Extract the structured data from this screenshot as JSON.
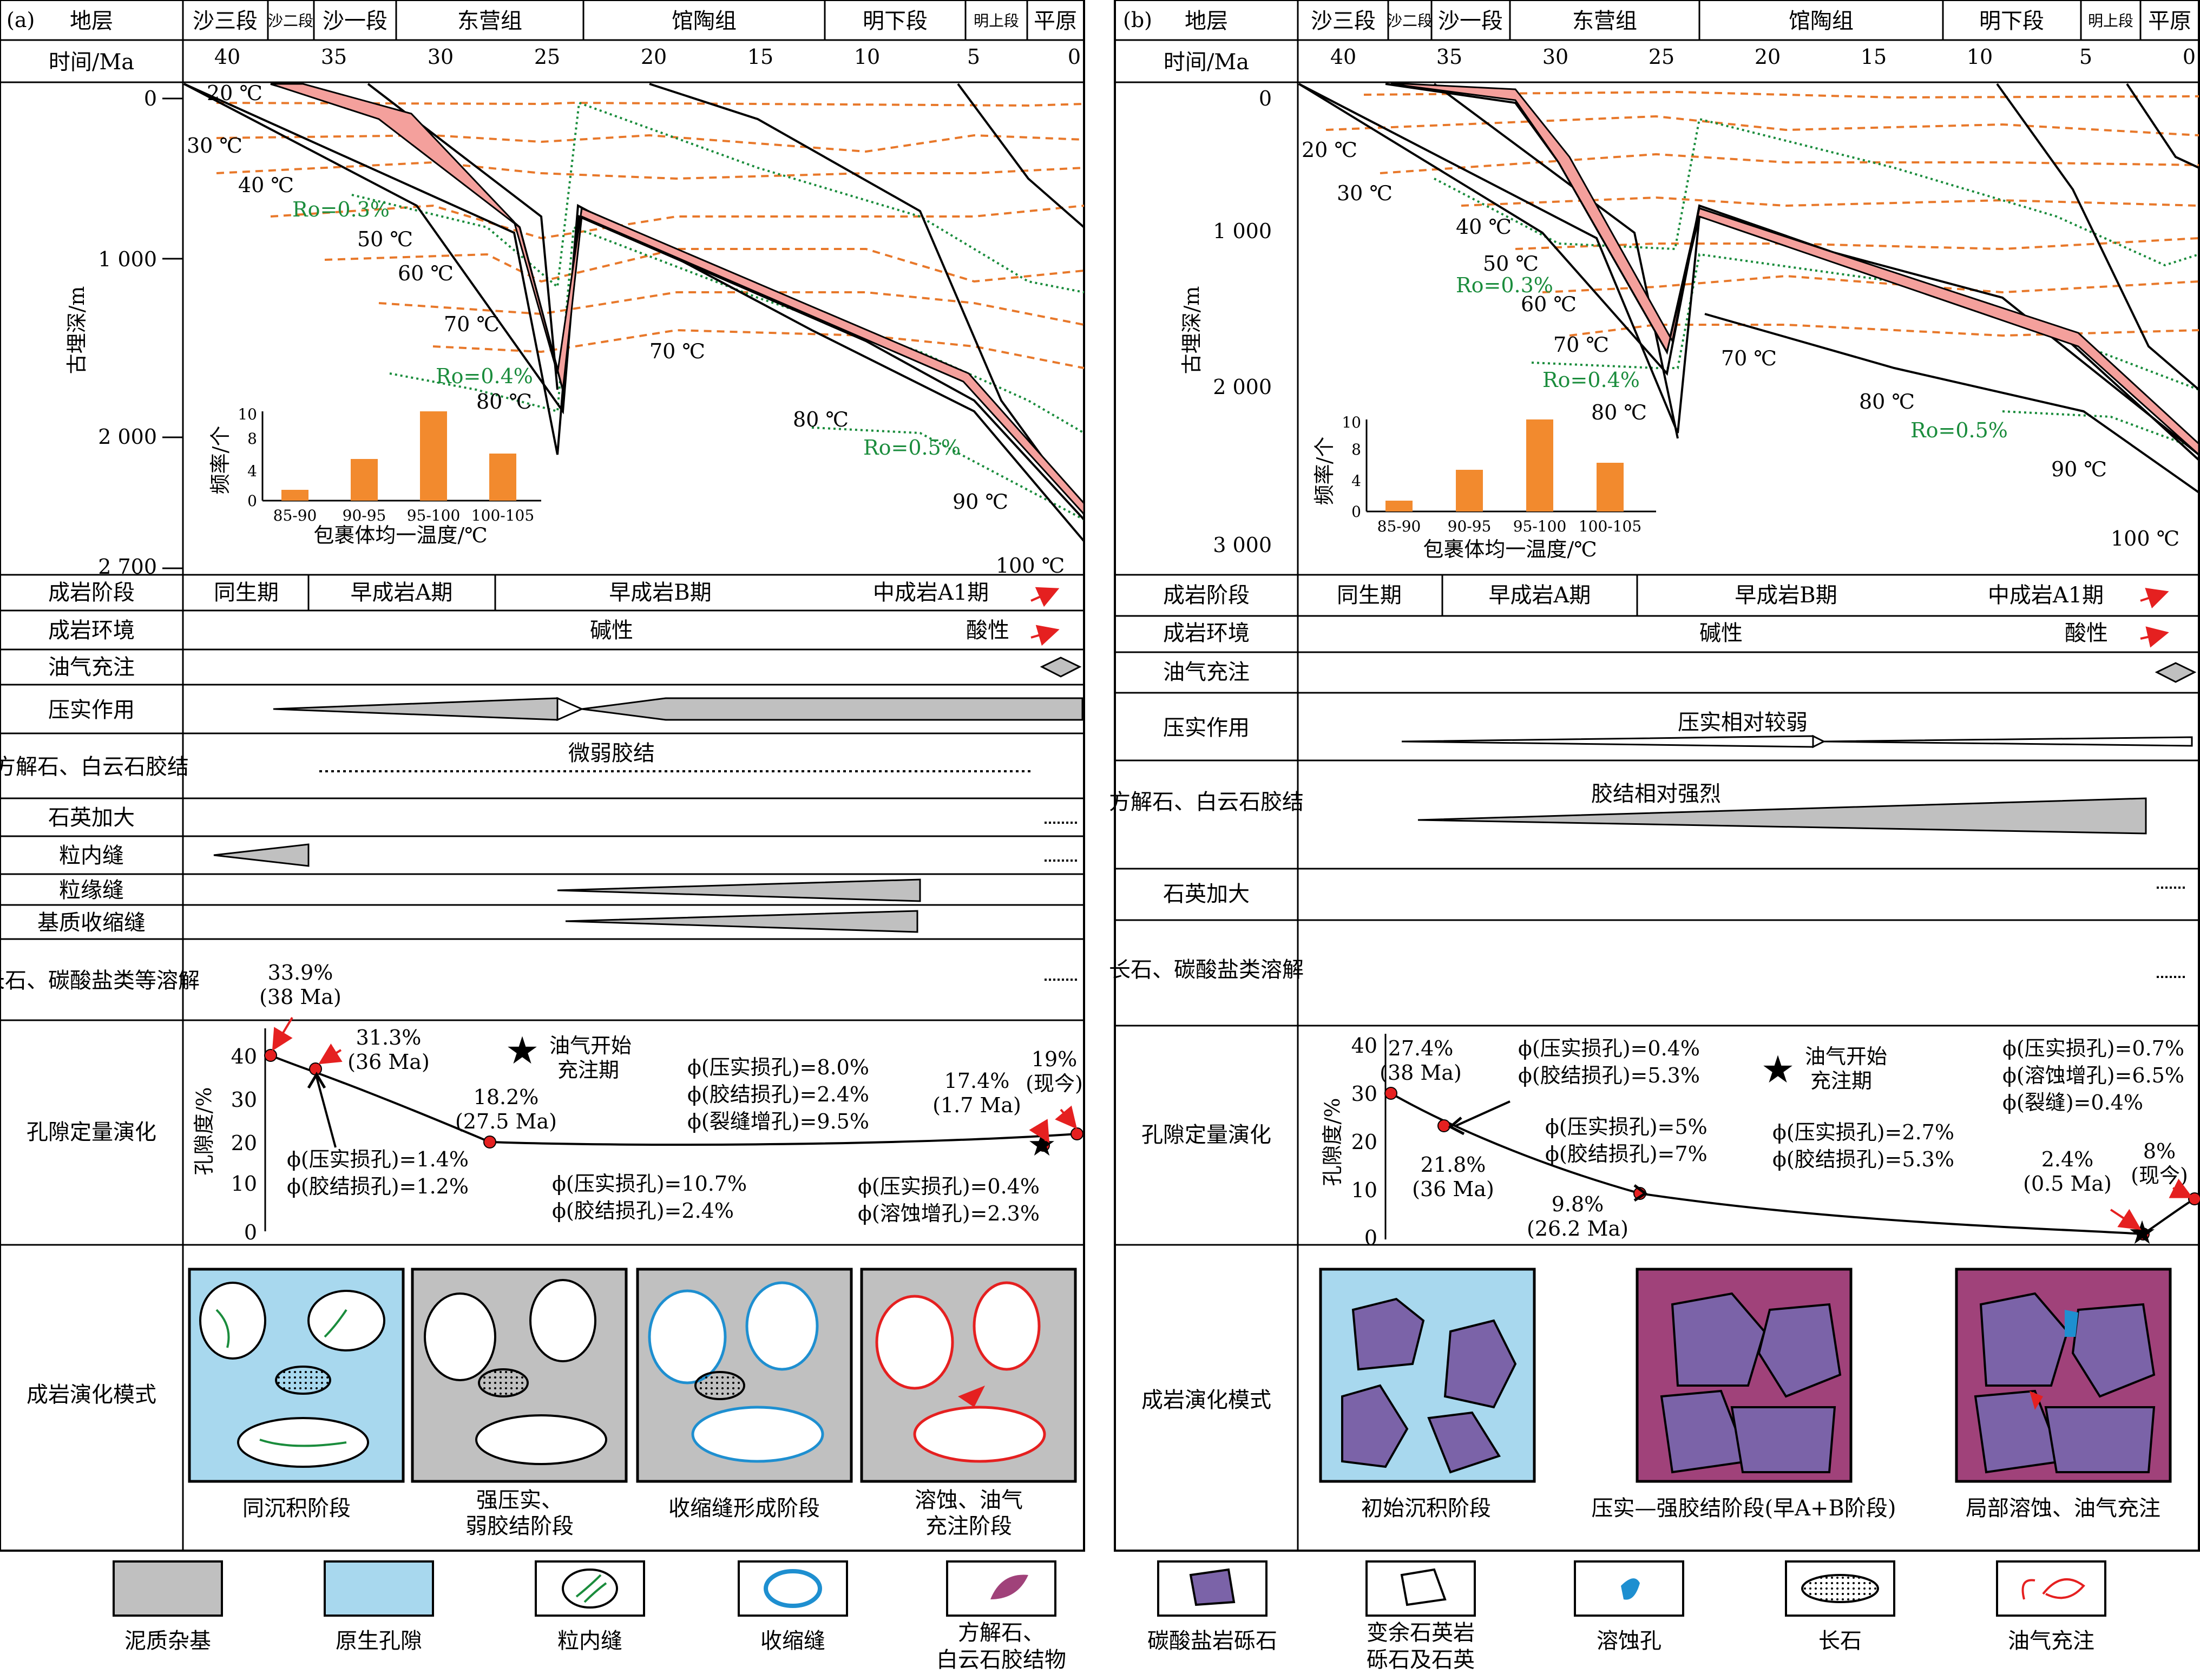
{
  "panel_a": {
    "tag": "(a)",
    "strata_header": "地层",
    "strata": [
      "沙三段",
      "沙二段",
      "沙一段",
      "东营组",
      "馆陶组",
      "明下段",
      "明上段",
      "平原"
    ],
    "time_header": "时间/Ma",
    "time_ticks": [
      "40",
      "35",
      "30",
      "25",
      "20",
      "15",
      "10",
      "5",
      "0"
    ],
    "depth_axis_label": "古埋深/m",
    "depth_ticks": [
      "0",
      "1 000",
      "2 000",
      "2 700"
    ],
    "isotherm_labels": [
      "20 ℃",
      "30 ℃",
      "40 ℃",
      "50 ℃",
      "60 ℃",
      "70 ℃",
      "80 ℃",
      "70 ℃",
      "80 ℃",
      "90 ℃",
      "100 ℃"
    ],
    "ro_labels": [
      "Ro=0.3%",
      "Ro=0.4%",
      "Ro=0.5%"
    ],
    "hist": {
      "ylabel": "频率/个",
      "xlabel": "包裹体均一温度/℃",
      "yticks": [
        "0",
        "4",
        "8",
        "10"
      ],
      "categories": [
        "85-90",
        "90-95",
        "95-100",
        "100-105"
      ],
      "values": [
        1,
        5,
        10,
        5.2
      ]
    },
    "stage_header": "成岩阶段",
    "stages": [
      "同生期",
      "早成岩A期",
      "早成岩B期",
      "中成岩A1期"
    ],
    "env_header": "成岩环境",
    "env": [
      "碱性",
      "酸性"
    ],
    "rows": [
      "油气充注",
      "压实作用",
      "方解石、白云石胶结",
      "石英加大",
      "粒内缝",
      "粒缘缝",
      "基质收缩缝",
      "长石、碳酸盐类等溶解",
      "孔隙定量演化",
      "成岩演化模式"
    ],
    "cement_note": "微弱胶结",
    "porosity": {
      "ylabel": "孔隙度/%",
      "yticks": [
        "0",
        "10",
        "20",
        "30",
        "40"
      ],
      "points": [
        {
          "v": "33.9%",
          "t": "(38 Ma)"
        },
        {
          "v": "31.3%",
          "t": "(36 Ma)"
        },
        {
          "v": "18.2%",
          "t": "(27.5 Ma)"
        },
        {
          "v": "17.4%",
          "t": "(1.7 Ma)"
        },
        {
          "v": "19%",
          "t": "(现今)"
        }
      ],
      "notes": [
        "ϕ(压实损孔)=1.4%",
        "ϕ(胶结损孔)=1.2%",
        "ϕ(压实损孔)=10.7%",
        "ϕ(胶结损孔)=2.4%",
        "ϕ(压实损孔)=8.0%",
        "ϕ(胶结损孔)=2.4%",
        "ϕ(裂缝增孔)=9.5%",
        "ϕ(压实损孔)=0.4%",
        "ϕ(溶蚀增孔)=2.3%"
      ],
      "star_label": [
        "油气开始",
        "充注期"
      ]
    },
    "model_captions": [
      "同沉积阶段",
      "强压实、",
      "弱胶结阶段",
      "收缩缝形成阶段",
      "溶蚀、油气",
      "充注阶段"
    ]
  },
  "panel_b": {
    "tag": "(b)",
    "strata_header": "地层",
    "strata": [
      "沙三段",
      "沙二段",
      "沙一段",
      "东营组",
      "馆陶组",
      "明下段",
      "明上段",
      "平原"
    ],
    "time_header": "时间/Ma",
    "time_ticks": [
      "40",
      "35",
      "30",
      "25",
      "20",
      "15",
      "10",
      "5",
      "0"
    ],
    "depth_axis_label": "古埋深/m",
    "depth_ticks": [
      "0",
      "1 000",
      "2 000",
      "3 000"
    ],
    "isotherm_labels": [
      "20 ℃",
      "30 ℃",
      "40 ℃",
      "50 ℃",
      "60 ℃",
      "70 ℃",
      "80 ℃",
      "70 ℃",
      "80 ℃",
      "90 ℃",
      "100 ℃"
    ],
    "ro_labels": [
      "Ro=0.3%",
      "Ro=0.4%",
      "Ro=0.5%"
    ],
    "hist": {
      "ylabel": "频率/个",
      "xlabel": "包裹体均一温度/℃",
      "yticks": [
        "0",
        "4",
        "8",
        "10"
      ],
      "categories": [
        "85-90",
        "90-95",
        "95-100",
        "100-105"
      ],
      "values": [
        1,
        5,
        10.5,
        5.5
      ]
    },
    "stage_header": "成岩阶段",
    "stages": [
      "同生期",
      "早成岩A期",
      "早成岩B期",
      "中成岩A1期"
    ],
    "env_header": "成岩环境",
    "env": [
      "碱性",
      "酸性"
    ],
    "rows": [
      "油气充注",
      "压实作用",
      "方解石、白云石胶结",
      "石英加大",
      "长石、碳酸盐类溶解",
      "孔隙定量演化",
      "成岩演化模式"
    ],
    "compaction_note": "压实相对较弱",
    "cement_note": "胶结相对强烈",
    "porosity": {
      "ylabel": "孔隙度/%",
      "yticks": [
        "0",
        "10",
        "20",
        "30",
        "40"
      ],
      "points": [
        {
          "v": "27.4%",
          "t": "(38 Ma)"
        },
        {
          "v": "21.8%",
          "t": "(36 Ma)"
        },
        {
          "v": "9.8%",
          "t": "(26.2 Ma)"
        },
        {
          "v": "2.4%",
          "t": "(0.5 Ma)"
        },
        {
          "v": "8%",
          "t": "(现今)"
        }
      ],
      "notes": [
        "ϕ(压实损孔)=0.4%",
        "ϕ(胶结损孔)=5.3%",
        "ϕ(压实损孔)=5%",
        "ϕ(胶结损孔)=7%",
        "ϕ(压实损孔)=2.7%",
        "ϕ(胶结损孔)=5.3%",
        "ϕ(压实损孔)=0.7%",
        "ϕ(溶蚀增孔)=6.5%",
        "ϕ(裂缝)=0.4%"
      ],
      "star_label": [
        "油气开始",
        "充注期"
      ]
    },
    "model_captions": [
      "初始沉积阶段",
      "压实—强胶结阶段(早A+B阶段)",
      "局部溶蚀、油气充注"
    ]
  },
  "legend": [
    "泥质杂基",
    "原生孔隙",
    "粒内缝",
    "收缩缝",
    "方解石、",
    "白云石胶结物",
    "碳酸盐岩砾石",
    "变余石英岩",
    "砾石及石英",
    "溶蚀孔",
    "长石",
    "油气充注"
  ],
  "colors": {
    "burial": "#f4a09c",
    "isotherm": "#e8782a",
    "ro": "#1a8c3c",
    "bar": "#f28a2e",
    "pore": "#a8d8ee",
    "matrix": "#c0c0c0",
    "carbonate": "#7b63a8",
    "cement": "#a0427a",
    "dissolution": "#1e8fd0"
  }
}
